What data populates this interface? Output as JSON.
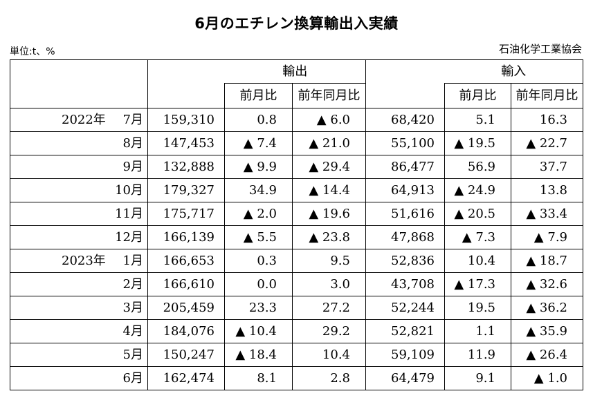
{
  "title": "6月のエチレン換算輸出入実績",
  "unit_label": "単位:t、%",
  "source": "石油化学工業協会",
  "headers": {
    "export": "輸出",
    "import": "輸入",
    "mom": "前月比",
    "yoy": "前年同月比"
  },
  "rows": [
    {
      "year": "2022年",
      "month": "7月",
      "export": "159,310",
      "export_mom": "0.8",
      "export_yoy": "▲ 6.0",
      "import": "68,420",
      "import_mom": "5.1",
      "import_yoy": "16.3"
    },
    {
      "year": "",
      "month": "8月",
      "export": "147,453",
      "export_mom": "▲ 7.4",
      "export_yoy": "▲ 21.0",
      "import": "55,100",
      "import_mom": "▲ 19.5",
      "import_yoy": "▲ 22.7"
    },
    {
      "year": "",
      "month": "9月",
      "export": "132,888",
      "export_mom": "▲ 9.9",
      "export_yoy": "▲ 29.4",
      "import": "86,477",
      "import_mom": "56.9",
      "import_yoy": "37.7"
    },
    {
      "year": "",
      "month": "10月",
      "export": "179,327",
      "export_mom": "34.9",
      "export_yoy": "▲ 14.4",
      "import": "64,913",
      "import_mom": "▲ 24.9",
      "import_yoy": "13.8"
    },
    {
      "year": "",
      "month": "11月",
      "export": "175,717",
      "export_mom": "▲ 2.0",
      "export_yoy": "▲ 19.6",
      "import": "51,616",
      "import_mom": "▲ 20.5",
      "import_yoy": "▲ 33.4"
    },
    {
      "year": "",
      "month": "12月",
      "export": "166,139",
      "export_mom": "▲ 5.5",
      "export_yoy": "▲ 23.8",
      "import": "47,868",
      "import_mom": "▲ 7.3",
      "import_yoy": "▲ 7.9"
    },
    {
      "year": "2023年",
      "month": "1月",
      "export": "166,653",
      "export_mom": "0.3",
      "export_yoy": "9.5",
      "import": "52,836",
      "import_mom": "10.4",
      "import_yoy": "▲ 18.7"
    },
    {
      "year": "",
      "month": "2月",
      "export": "166,610",
      "export_mom": "0.0",
      "export_yoy": "3.0",
      "import": "43,708",
      "import_mom": "▲ 17.3",
      "import_yoy": "▲ 32.6"
    },
    {
      "year": "",
      "month": "3月",
      "export": "205,459",
      "export_mom": "23.3",
      "export_yoy": "27.2",
      "import": "52,244",
      "import_mom": "19.5",
      "import_yoy": "▲ 36.2"
    },
    {
      "year": "",
      "month": "4月",
      "export": "184,076",
      "export_mom": "▲ 10.4",
      "export_yoy": "29.2",
      "import": "52,821",
      "import_mom": "1.1",
      "import_yoy": "▲ 35.9"
    },
    {
      "year": "",
      "month": "5月",
      "export": "150,247",
      "export_mom": "▲ 18.4",
      "export_yoy": "10.4",
      "import": "59,109",
      "import_mom": "11.9",
      "import_yoy": "▲ 26.4"
    },
    {
      "year": "",
      "month": "6月",
      "export": "162,474",
      "export_mom": "8.1",
      "export_yoy": "2.8",
      "import": "64,479",
      "import_mom": "9.1",
      "import_yoy": "▲ 1.0"
    }
  ]
}
